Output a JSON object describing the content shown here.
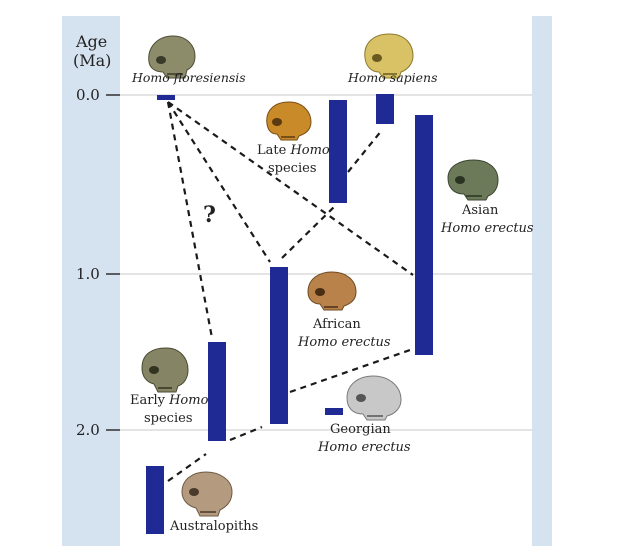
{
  "axis": {
    "title_line1": "Age",
    "title_line2": "(Ma)",
    "ticks": [
      "0.0",
      "1.0",
      "2.0"
    ]
  },
  "question_mark": "?",
  "colors": {
    "panel_bg": "#d5e2f0",
    "plot_bg": "#ffffff",
    "bar": "#1f2a94",
    "gridline": "#c9c9c9"
  },
  "groups": {
    "floresiensis": {
      "line1": "Homo floresiensis"
    },
    "sapiens": {
      "line1": "Homo sapiens"
    },
    "late_homo": {
      "line1_a": "Late ",
      "line1_b": "Homo",
      "line2": "species"
    },
    "asian_erectus": {
      "line1": "Asian",
      "line2": "Homo erectus"
    },
    "african_erectus": {
      "line1": "African",
      "line2": "Homo erectus"
    },
    "early_homo": {
      "line1_a": "Early ",
      "line1_b": "Homo",
      "line2": "species"
    },
    "georgian_erectus": {
      "line1": "Georgian",
      "line2": "Homo erectus"
    },
    "australopiths": {
      "line1": "Australopiths"
    }
  },
  "skull_icons": [
    "skull-floresiensis-icon",
    "skull-sapiens-icon",
    "skull-late-homo-icon",
    "skull-asian-erectus-icon",
    "skull-african-erectus-icon",
    "skull-early-homo-icon",
    "skull-georgian-icon",
    "skull-australopith-icon"
  ]
}
